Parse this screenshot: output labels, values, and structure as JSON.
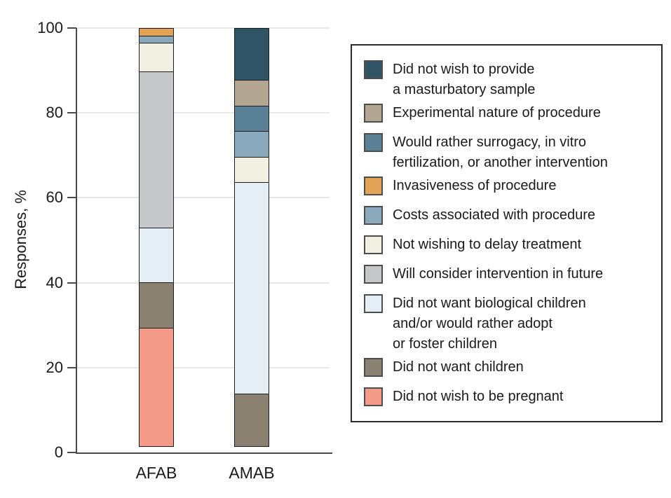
{
  "chart_data": {
    "type": "bar",
    "subtype": "stacked-vertical",
    "title": "",
    "categories": [
      "AFAB",
      "AMAB"
    ],
    "xlabel": "",
    "ylabel": "Responses, %",
    "ylim": [
      0,
      100
    ],
    "yticks": [
      0,
      20,
      40,
      60,
      80,
      100
    ],
    "grid": "horizontal-light-gray",
    "legend_position": "right",
    "series_order": "first series is top of stack",
    "series": [
      {
        "name": "Did not wish to provide a masturbatory sample",
        "legend_lines": [
          "Did not wish to provide",
          "a masturbatory sample"
        ],
        "color": "#2e5465",
        "values": [
          0,
          12.5
        ]
      },
      {
        "name": "Experimental nature of procedure",
        "legend_lines": [
          "Experimental nature of procedure"
        ],
        "color": "#b3a793",
        "values": [
          0,
          6.25
        ]
      },
      {
        "name": "Would rather surrogacy, in vitro fertilization, or another intervention",
        "legend_lines": [
          "Would rather surrogacy, in vitro",
          "fertilization, or another intervention"
        ],
        "color": "#5a8095",
        "values": [
          0,
          6.25
        ]
      },
      {
        "name": "Invasiveness of procedure",
        "legend_lines": [
          "Invasiveness of procedure"
        ],
        "color": "#e2a355",
        "values": [
          2,
          0
        ]
      },
      {
        "name": "Costs associated with procedure",
        "legend_lines": [
          "Costs associated with procedure"
        ],
        "color": "#8aa9bc",
        "values": [
          2,
          6.25
        ]
      },
      {
        "name": "Not wishing to delay treatment",
        "legend_lines": [
          "Not wishing to delay treatment"
        ],
        "color": "#f0efe2",
        "values": [
          7,
          6.25
        ]
      },
      {
        "name": "Will consider intervention in future",
        "legend_lines": [
          "Will consider intervention in future"
        ],
        "color": "#c6c7c9",
        "values": [
          37,
          0
        ]
      },
      {
        "name": "Did not want biological children and/or would rather adopt or foster children",
        "legend_lines": [
          "Did not want biological children",
          "and/or would rather adopt",
          "or foster children"
        ],
        "color": "#e5eef4",
        "values": [
          13,
          50
        ]
      },
      {
        "name": "Did not want children",
        "legend_lines": [
          "Did not want children"
        ],
        "color": "#8a8173",
        "values": [
          11,
          12.5
        ]
      },
      {
        "name": "Did not wish to be pregnant",
        "legend_lines": [
          "Did not wish to be pregnant"
        ],
        "color": "#f39a88",
        "values": [
          28,
          0
        ]
      }
    ],
    "colors": {
      "axis": "#47494b",
      "gridline": "#e8e8e8",
      "segment_outline": "#1c1c1c",
      "text": "#1a1a1a"
    }
  }
}
